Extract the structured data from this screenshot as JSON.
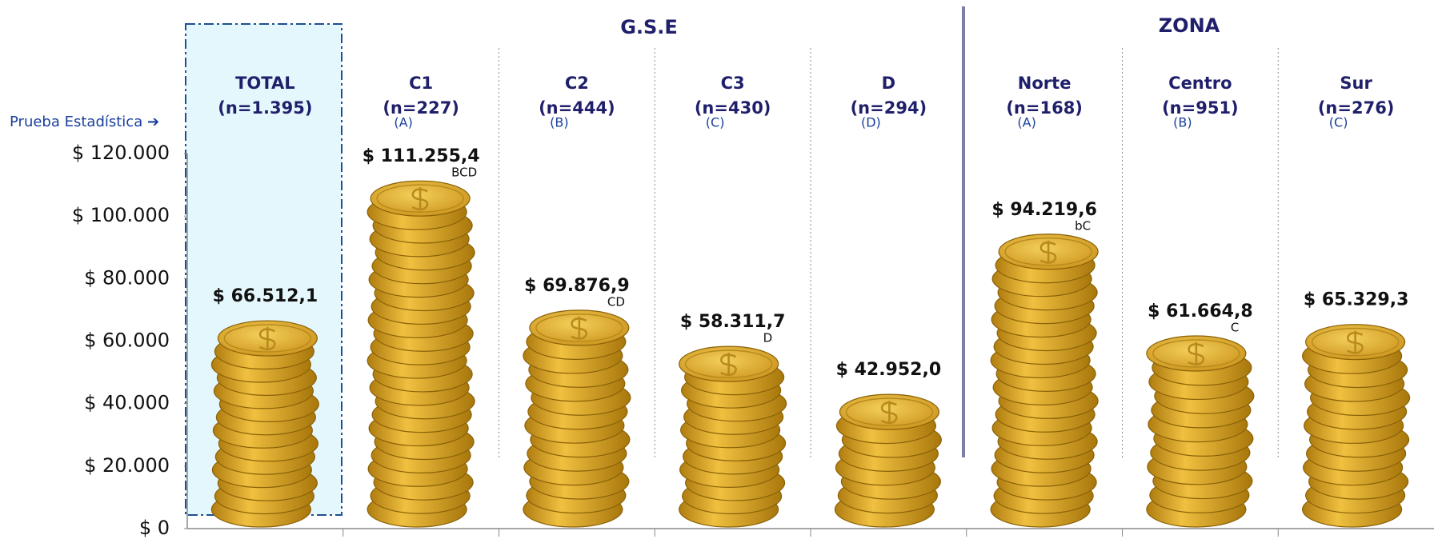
{
  "chart_data": {
    "type": "bar",
    "test_label": "Prueba Estadística ➔",
    "groups": [
      {
        "label": "G.S.E"
      },
      {
        "label": "ZONA"
      }
    ],
    "categories": [
      "TOTAL",
      "C1",
      "C2",
      "C3",
      "D",
      "Norte",
      "Centro",
      "Sur"
    ],
    "sample_sizes": [
      "(n=1.395)",
      "(n=227)",
      "(n=444)",
      "(n=430)",
      "(n=294)",
      "(n=168)",
      "(n=951)",
      "(n=276)"
    ],
    "test_letters": [
      null,
      "(A)",
      "(B)",
      "(C)",
      "(D)",
      "(A)",
      "(B)",
      "(C)"
    ],
    "values": [
      66512.1,
      111255.4,
      69876.9,
      58311.7,
      42952.0,
      94219.6,
      61664.8,
      65329.3
    ],
    "value_labels": [
      "$ 66.512,1",
      "$ 111.255,4",
      "$ 69.876,9",
      "$ 58.311,7",
      "$ 42.952,0",
      "$ 94.219,6",
      "$ 61.664,8",
      "$ 65.329,3"
    ],
    "significance": [
      null,
      "BCD",
      "CD",
      "D",
      null,
      "bC",
      "C",
      null
    ],
    "color": "#e0aa26",
    "ylim": [
      0,
      120000
    ],
    "yticks": [
      {
        "value": 0,
        "label": "$ 0"
      },
      {
        "value": 20000,
        "label": "$ 20.000"
      },
      {
        "value": 40000,
        "label": "$ 40.000"
      },
      {
        "value": 60000,
        "label": "$ 60.000"
      },
      {
        "value": 80000,
        "label": "$ 80.000"
      },
      {
        "value": 100000,
        "label": "$ 100.000"
      },
      {
        "value": 120000,
        "label": "$ 120.000"
      }
    ]
  }
}
